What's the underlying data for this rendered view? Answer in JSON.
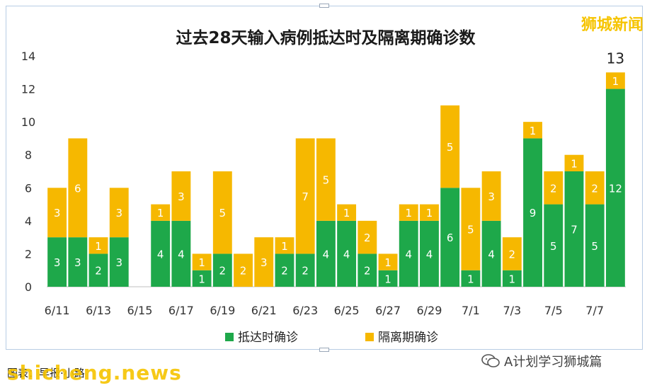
{
  "brand": "狮城新闻",
  "wechat_account": "A计划学习狮城篇",
  "caption": "图表：早报·小路",
  "watermark": "shicheng.news",
  "colors": {
    "arrival": "#1ea84a",
    "quarantine": "#f6b800"
  },
  "chart_data": {
    "type": "bar",
    "stacked": true,
    "title": "过去28天输入病例抵达时及隔离期确诊数",
    "categories": [
      "6/11",
      "6/12",
      "6/13",
      "6/14",
      "6/15",
      "6/16",
      "6/17",
      "6/18",
      "6/19",
      "6/20",
      "6/21",
      "6/22",
      "6/23",
      "6/24",
      "6/25",
      "6/26",
      "6/27",
      "6/28",
      "6/29",
      "6/30",
      "7/1",
      "7/2",
      "7/3",
      "7/4",
      "7/5",
      "7/6",
      "7/7",
      "7/8"
    ],
    "x_tick_labels": [
      "6/11",
      "6/13",
      "6/15",
      "6/17",
      "6/19",
      "6/21",
      "6/23",
      "6/25",
      "6/27",
      "6/29",
      "7/1",
      "7/3",
      "7/5",
      "7/7"
    ],
    "series": [
      {
        "name": "抵达时确诊",
        "values": [
          3,
          3,
          2,
          3,
          0,
          4,
          4,
          1,
          2,
          0,
          0,
          2,
          2,
          4,
          4,
          2,
          1,
          4,
          4,
          6,
          1,
          4,
          1,
          9,
          5,
          7,
          5,
          12
        ]
      },
      {
        "name": "隔离期确诊",
        "values": [
          3,
          6,
          1,
          3,
          0,
          1,
          3,
          1,
          5,
          2,
          3,
          1,
          7,
          5,
          1,
          2,
          1,
          1,
          1,
          5,
          5,
          3,
          2,
          1,
          2,
          1,
          2,
          1
        ]
      }
    ],
    "ylim": [
      0,
      14
    ],
    "yticks": [
      0,
      2,
      4,
      6,
      8,
      10,
      12,
      14
    ],
    "annotations": [
      {
        "category": "7/8",
        "text": "13"
      }
    ],
    "legend_position": "bottom"
  }
}
